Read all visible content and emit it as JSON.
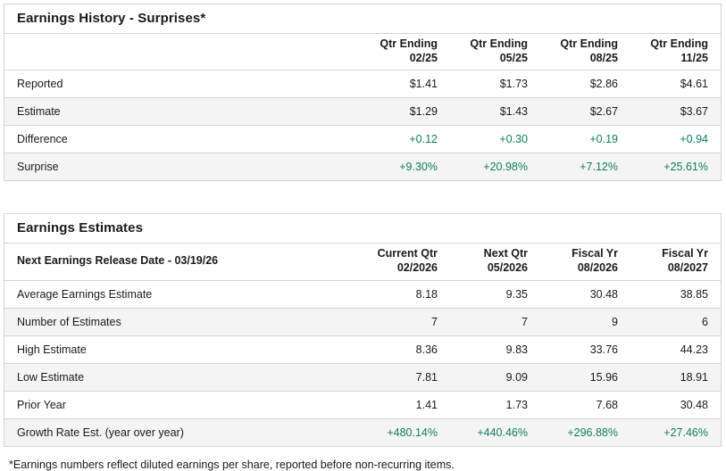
{
  "colors": {
    "positive_value": "#0f7e62",
    "row_stripe": "#f4f4f4",
    "border": "#d4d4d4",
    "text": "#1a1a1a"
  },
  "earnings_history": {
    "title": "Earnings History - Surprises*",
    "corner_label": "",
    "columns": [
      "Qtr Ending\n02/25",
      "Qtr Ending\n05/25",
      "Qtr Ending\n08/25",
      "Qtr Ending\n11/25"
    ],
    "rows": [
      {
        "label": "Reported",
        "values": [
          "$1.41",
          "$1.73",
          "$2.86",
          "$4.61"
        ]
      },
      {
        "label": "Estimate",
        "values": [
          "$1.29",
          "$1.43",
          "$2.67",
          "$3.67"
        ]
      },
      {
        "label": "Difference",
        "values": [
          "+0.12",
          "+0.30",
          "+0.19",
          "+0.94"
        ]
      },
      {
        "label": "Surprise",
        "values": [
          "+9.30%",
          "+20.98%",
          "+7.12%",
          "+25.61%"
        ]
      }
    ]
  },
  "earnings_estimates": {
    "title": "Earnings Estimates",
    "corner_label": "Next Earnings Release Date - 03/19/26",
    "columns": [
      "Current Qtr\n02/2026",
      "Next Qtr\n05/2026",
      "Fiscal Yr\n08/2026",
      "Fiscal Yr\n08/2027"
    ],
    "rows": [
      {
        "label": "Average Earnings Estimate",
        "values": [
          "8.18",
          "9.35",
          "30.48",
          "38.85"
        ]
      },
      {
        "label": "Number of Estimates",
        "values": [
          "7",
          "7",
          "9",
          "6"
        ]
      },
      {
        "label": "High Estimate",
        "values": [
          "8.36",
          "9.83",
          "33.76",
          "44.23"
        ]
      },
      {
        "label": "Low Estimate",
        "values": [
          "7.81",
          "9.09",
          "15.96",
          "18.91"
        ]
      },
      {
        "label": "Prior Year",
        "values": [
          "1.41",
          "1.73",
          "7.68",
          "30.48"
        ]
      },
      {
        "label": "Growth Rate Est. (year over year)",
        "values": [
          "+480.14%",
          "+440.46%",
          "+296.88%",
          "+27.46%"
        ]
      }
    ]
  },
  "footnote": "*Earnings numbers reflect diluted earnings per share, reported before non-recurring items."
}
